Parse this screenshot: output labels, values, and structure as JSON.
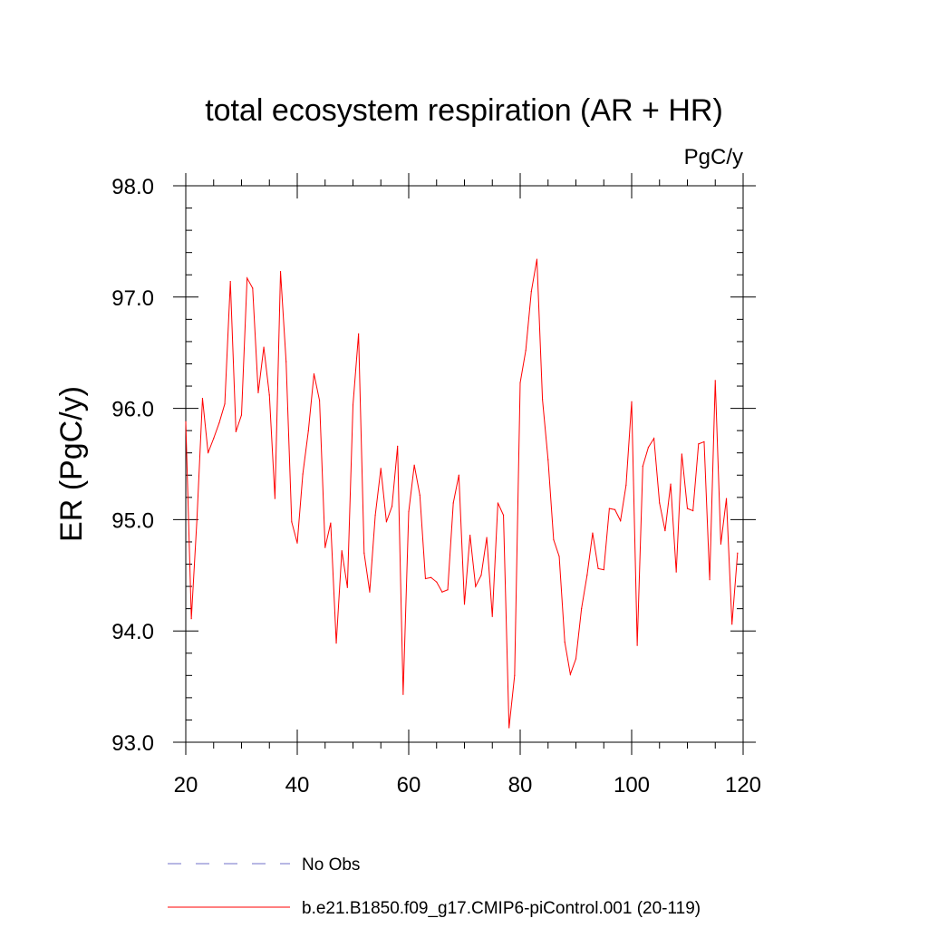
{
  "chart_data": {
    "type": "line",
    "title": "total ecosystem respiration (AR + HR)",
    "units": "PgC/y",
    "ylabel": "ER  (PgC/y)",
    "xlabel": "",
    "xlim": [
      20,
      120
    ],
    "ylim": [
      93.0,
      98.0
    ],
    "xticks": [
      20,
      40,
      60,
      80,
      100,
      120
    ],
    "xtick_labels": [
      "20",
      "40",
      "60",
      "80",
      "100",
      "120"
    ],
    "yticks": [
      93.0,
      94.0,
      95.0,
      96.0,
      97.0,
      98.0
    ],
    "ytick_labels": [
      "93.0",
      "94.0",
      "95.0",
      "96.0",
      "97.0",
      "98.0"
    ],
    "series": [
      {
        "name": "b.e21.B1850.f09_g17.CMIP6-piControl.001 (20-119)",
        "color": "#ff0000",
        "style": "solid",
        "x": [
          20,
          21,
          22,
          23,
          24,
          25,
          26,
          27,
          28,
          29,
          30,
          31,
          32,
          33,
          34,
          35,
          36,
          37,
          38,
          39,
          40,
          41,
          42,
          43,
          44,
          45,
          46,
          47,
          48,
          49,
          50,
          51,
          52,
          53,
          54,
          55,
          56,
          57,
          58,
          59,
          60,
          61,
          62,
          63,
          64,
          65,
          66,
          67,
          68,
          69,
          70,
          71,
          72,
          73,
          74,
          75,
          76,
          77,
          78,
          79,
          80,
          81,
          82,
          83,
          84,
          85,
          86,
          87,
          88,
          89,
          90,
          91,
          92,
          93,
          94,
          95,
          96,
          97,
          98,
          99,
          100,
          101,
          102,
          103,
          104,
          105,
          106,
          107,
          108,
          109,
          110,
          111,
          112,
          113,
          114,
          115,
          116,
          117,
          118,
          119
        ],
        "values": [
          95.88,
          94.11,
          95.0,
          96.09,
          95.6,
          95.73,
          95.87,
          96.04,
          97.14,
          95.79,
          95.94,
          97.17,
          97.08,
          96.14,
          96.55,
          96.12,
          95.19,
          97.23,
          96.42,
          94.98,
          94.79,
          95.41,
          95.8,
          96.31,
          96.07,
          94.75,
          94.97,
          93.89,
          94.72,
          94.39,
          96.03,
          96.67,
          94.7,
          94.35,
          95.04,
          95.46,
          94.98,
          95.12,
          95.66,
          93.43,
          95.07,
          95.49,
          95.22,
          94.47,
          94.48,
          94.44,
          94.35,
          94.37,
          95.15,
          95.4,
          94.24,
          94.86,
          94.4,
          94.5,
          94.84,
          94.13,
          95.15,
          95.04,
          93.13,
          93.6,
          96.23,
          96.52,
          97.05,
          97.34,
          96.08,
          95.54,
          94.82,
          94.67,
          93.9,
          93.61,
          93.75,
          94.2,
          94.5,
          94.88,
          94.56,
          94.55,
          95.1,
          95.09,
          94.99,
          95.31,
          96.06,
          93.87,
          95.48,
          95.65,
          95.73,
          95.15,
          94.9,
          95.32,
          94.53,
          95.59,
          95.1,
          95.08,
          95.68,
          95.7,
          94.46,
          96.25,
          94.78,
          95.19,
          94.06,
          94.7
        ]
      }
    ],
    "legend": [
      {
        "label": "No Obs",
        "color": "#7070c8",
        "style": "dashed"
      },
      {
        "label": "b.e21.B1850.f09_g17.CMIP6-piControl.001 (20-119)",
        "color": "#ff0000",
        "style": "solid"
      }
    ],
    "legend_position": "bottom-left"
  }
}
